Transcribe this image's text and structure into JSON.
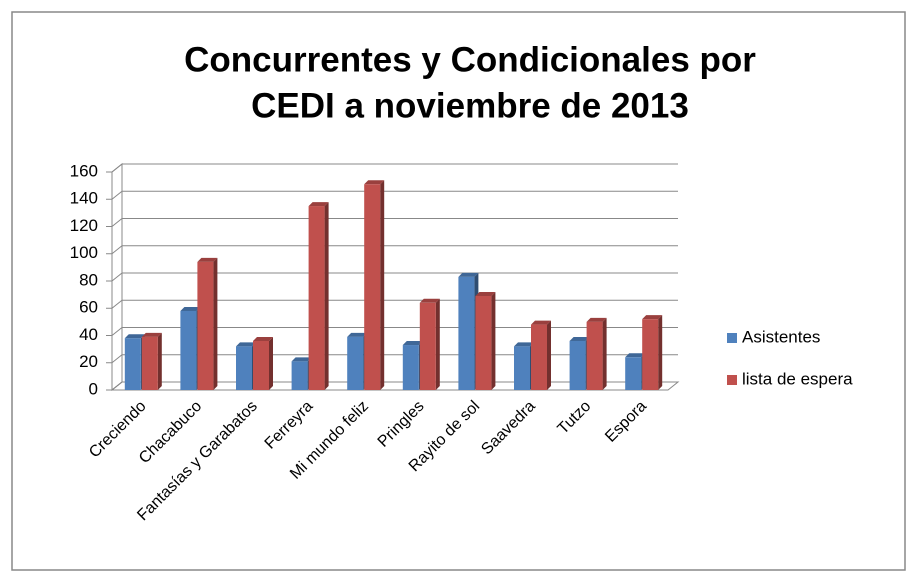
{
  "chart_data": {
    "type": "bar",
    "title": [
      "Concurrentes  y Condicionales por",
      "CEDI a noviembre de 2013"
    ],
    "categories": [
      "Creciendo",
      "Chacabuco",
      "Fantasías y Garabatos",
      "Ferreyra",
      "Mi mundo feliz",
      "Pringles",
      "Rayito de sol",
      "Saavedra",
      "Tutzo",
      "Espora"
    ],
    "series": [
      {
        "name": "Asistentes",
        "color": "#4f81bd",
        "values": [
          38,
          58,
          32,
          21,
          39,
          33,
          83,
          32,
          36,
          24
        ]
      },
      {
        "name": "lista de espera",
        "color": "#c0504d",
        "values": [
          39,
          94,
          36,
          135,
          151,
          64,
          69,
          48,
          50,
          52
        ]
      }
    ],
    "ylim": [
      0,
      160
    ],
    "yticks": [
      0,
      20,
      40,
      60,
      80,
      100,
      120,
      140,
      160
    ],
    "grid": true,
    "legend": "right"
  }
}
